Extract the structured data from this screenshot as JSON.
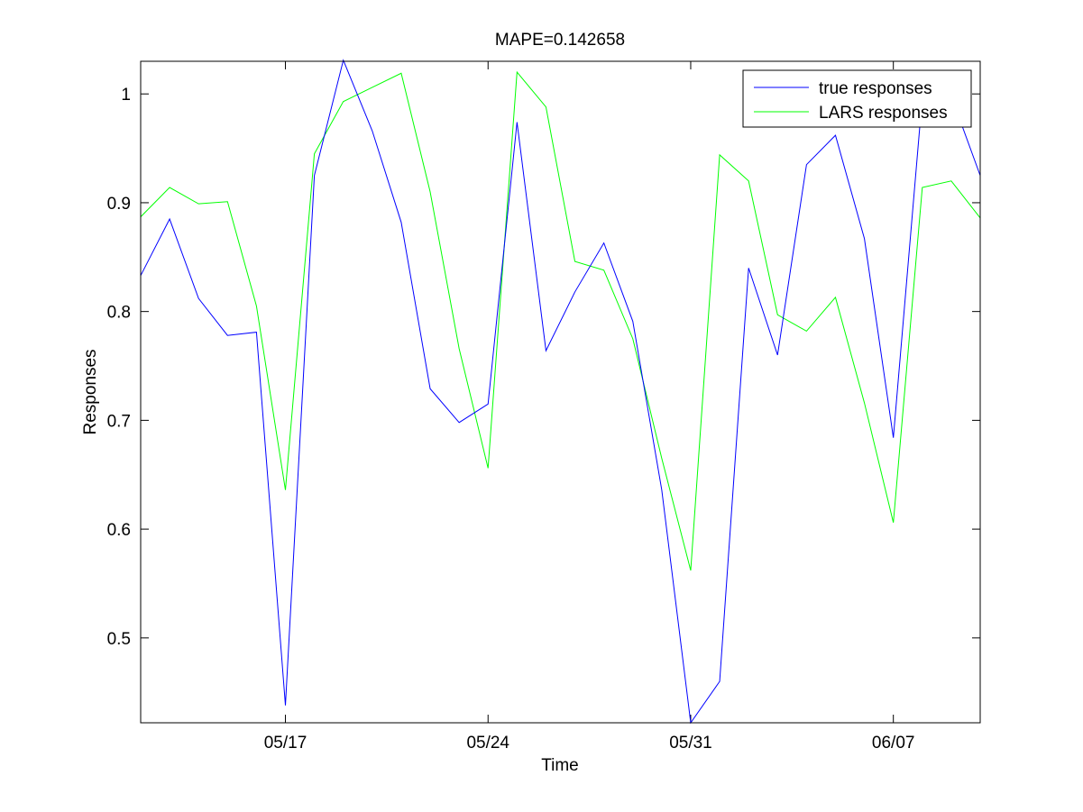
{
  "chart_data": {
    "type": "line",
    "title": "MAPE=0.142658",
    "xlabel": "Time",
    "ylabel": "Responses",
    "x_tick_labels": [
      "05/17",
      "05/24",
      "05/31",
      "06/07"
    ],
    "x_tick_index": [
      5,
      12,
      19,
      26
    ],
    "y_ticks": [
      0.5,
      0.6,
      0.7,
      0.8,
      0.9,
      1.0
    ],
    "y_tick_labels": [
      "0.5",
      "0.6",
      "0.7",
      "0.8",
      "0.9",
      "1"
    ],
    "xlim_index": [
      0,
      29
    ],
    "ylim": [
      0.422,
      1.03
    ],
    "grid": false,
    "legend_position": "top-right",
    "series": [
      {
        "name": "true responses",
        "color": "#0000ff",
        "values": [
          0.833,
          0.885,
          0.812,
          0.778,
          0.781,
          0.438,
          0.925,
          1.031,
          0.966,
          0.882,
          0.729,
          0.698,
          0.715,
          0.974,
          0.764,
          0.818,
          0.863,
          0.791,
          0.636,
          0.422,
          0.46,
          0.84,
          0.76,
          0.935,
          0.962,
          0.867,
          0.684,
          0.997,
          0.998,
          0.925
        ]
      },
      {
        "name": "LARS responses",
        "color": "#00ff00",
        "values": [
          0.887,
          0.914,
          0.899,
          0.901,
          0.805,
          0.636,
          0.945,
          0.993,
          1.006,
          1.019,
          0.91,
          0.766,
          0.656,
          1.02,
          0.988,
          0.846,
          0.838,
          0.775,
          0.665,
          0.562,
          0.944,
          0.92,
          0.797,
          0.782,
          0.813,
          0.716,
          0.606,
          0.914,
          0.92,
          0.886
        ]
      }
    ]
  }
}
